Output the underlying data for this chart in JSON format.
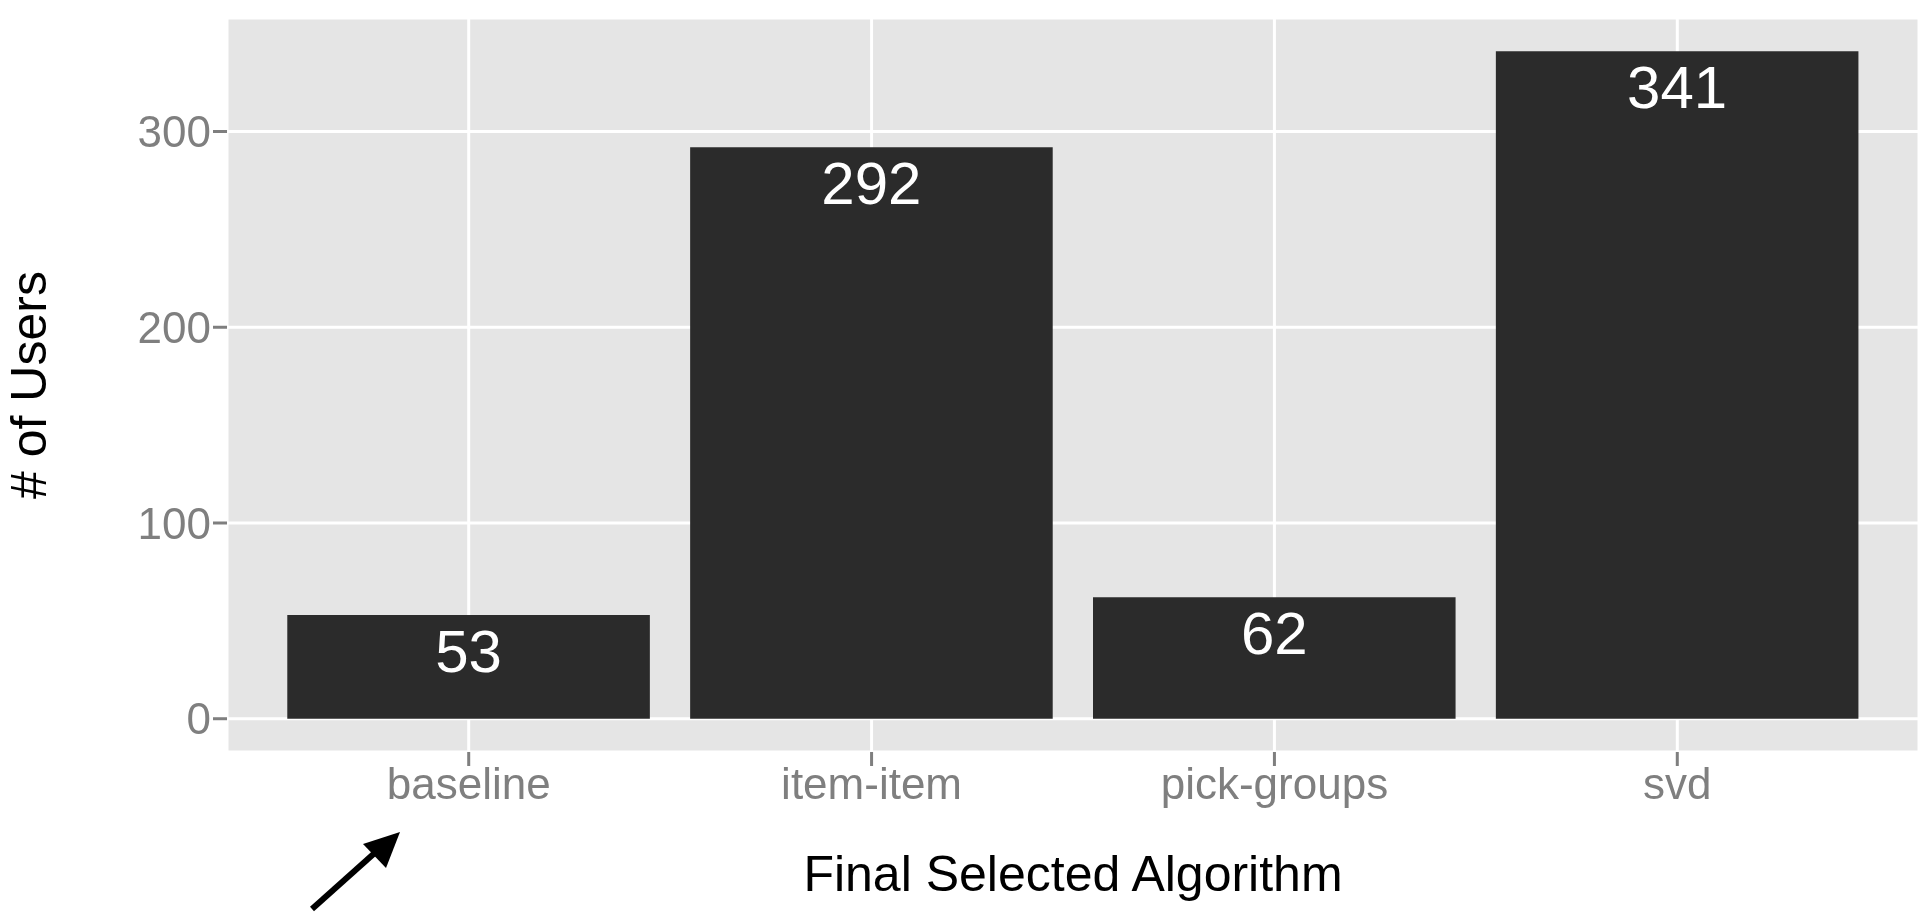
{
  "chart_data": {
    "type": "bar",
    "xlabel": "Final Selected Algorithm",
    "ylabel": "# of Users",
    "categories": [
      "baseline",
      "item-item",
      "pick-groups",
      "svd"
    ],
    "values": [
      53,
      292,
      62,
      341
    ],
    "color": "#2b2b2b",
    "ylim": [
      -17,
      358
    ],
    "yticks": [
      0,
      100,
      200,
      300
    ],
    "grid": true,
    "data_labels": true
  }
}
